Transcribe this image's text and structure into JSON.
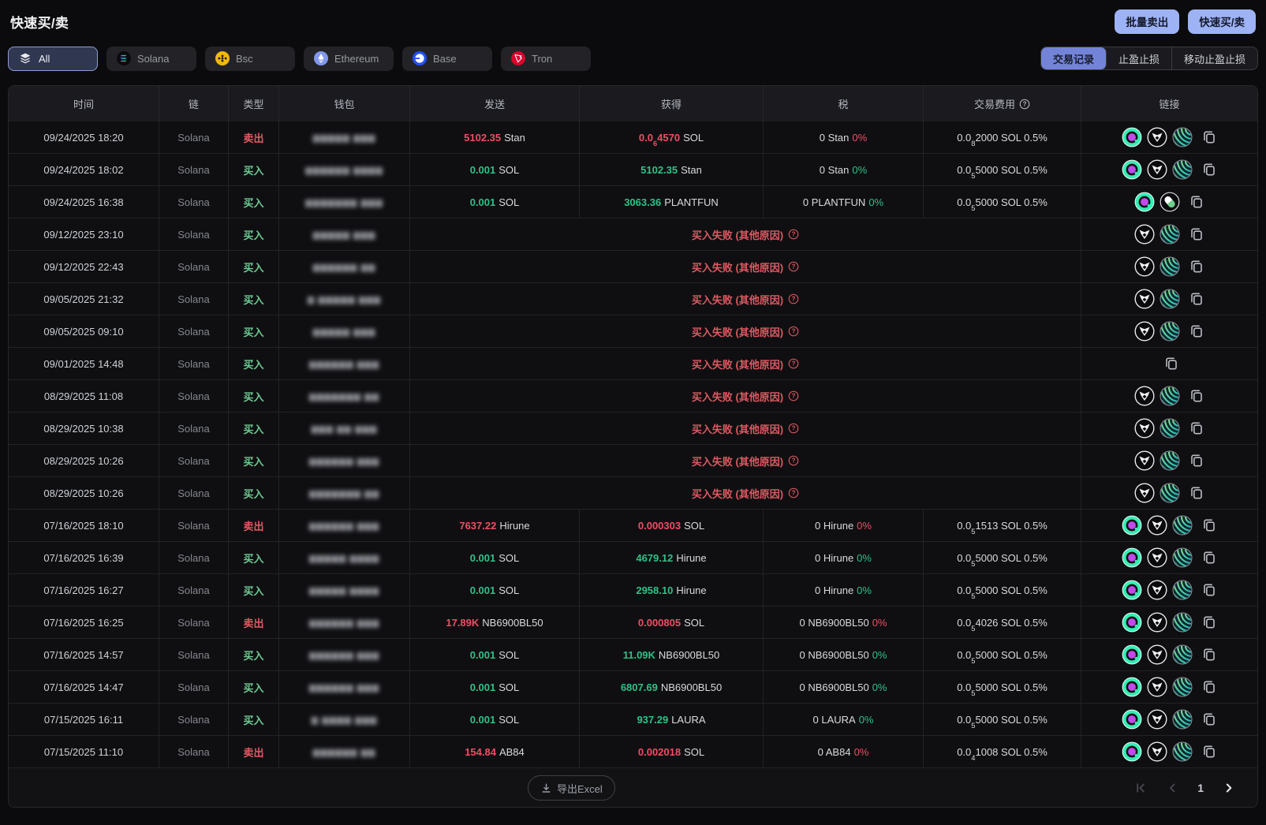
{
  "page": {
    "title": "快速买/卖",
    "actions": {
      "batch_sell": "批量卖出",
      "quick_trade": "快速买/卖"
    }
  },
  "chain_filters": [
    {
      "id": "all",
      "label": "All",
      "icon": "layers-icon",
      "active": true
    },
    {
      "id": "solana",
      "label": "Solana",
      "icon": "solana-icon",
      "active": false
    },
    {
      "id": "bsc",
      "label": "Bsc",
      "icon": "bsc-icon",
      "active": false
    },
    {
      "id": "ethereum",
      "label": "Ethereum",
      "icon": "ethereum-icon",
      "active": false
    },
    {
      "id": "base",
      "label": "Base",
      "icon": "base-icon",
      "active": false
    },
    {
      "id": "tron",
      "label": "Tron",
      "icon": "tron-icon",
      "active": false
    }
  ],
  "view_tabs": [
    {
      "label": "交易记录",
      "active": true
    },
    {
      "label": "止盈止损",
      "active": false
    },
    {
      "label": "移动止盈止损",
      "active": false
    }
  ],
  "table": {
    "headers": [
      "时间",
      "链",
      "类型",
      "钱包",
      "发送",
      "获得",
      "税",
      "交易费用",
      "链接"
    ],
    "type_labels": {
      "buy": "买入",
      "sell": "卖出"
    },
    "fail_text": "买入失败 (其他原因)",
    "rows": [
      {
        "time": "09/24/2025 18:20",
        "chain": "Solana",
        "type": "sell",
        "wallet_mask": "▆▆▆▆▆ ▆▆▆",
        "send": {
          "num": "5102.35",
          "token": "Stan"
        },
        "get": {
          "pre": "0.0",
          "sub": "6",
          "post": "4570",
          "token": "SOL"
        },
        "tax": {
          "amount": "0",
          "token": "Stan",
          "pct": "0%"
        },
        "fee": {
          "pre": "0.0",
          "sub": "8",
          "post": "2000",
          "token": "SOL",
          "pct": "0.5%"
        },
        "links": [
          "q",
          "bullx",
          "wave",
          "copy"
        ]
      },
      {
        "time": "09/24/2025 18:02",
        "chain": "Solana",
        "type": "buy",
        "wallet_mask": "▆▆▆▆▆▆ ▆▆▆▆",
        "send": {
          "num": "0.001",
          "token": "SOL"
        },
        "get": {
          "num": "5102.35",
          "token": "Stan"
        },
        "tax": {
          "amount": "0",
          "token": "Stan",
          "pct": "0%"
        },
        "fee": {
          "pre": "0.0",
          "sub": "5",
          "post": "5000",
          "token": "SOL",
          "pct": "0.5%"
        },
        "links": [
          "q",
          "bullx",
          "wave",
          "copy"
        ]
      },
      {
        "time": "09/24/2025 16:38",
        "chain": "Solana",
        "type": "buy",
        "wallet_mask": "▆▆▆▆▆▆▆ ▆▆▆",
        "send": {
          "num": "0.001",
          "token": "SOL"
        },
        "get": {
          "num": "3063.36",
          "token": "PLANTFUN"
        },
        "tax": {
          "amount": "0",
          "token": "PLANTFUN",
          "pct": "0%"
        },
        "fee": {
          "pre": "0.0",
          "sub": "5",
          "post": "5000",
          "token": "SOL",
          "pct": "0.5%"
        },
        "links": [
          "q",
          "pill",
          "copy"
        ]
      },
      {
        "time": "09/12/2025 23:10",
        "chain": "Solana",
        "type": "buy",
        "wallet_mask": "▆▆▆▆▆  ▆▆▆",
        "failed": true,
        "links": [
          "bullx",
          "wave",
          "copy"
        ]
      },
      {
        "time": "09/12/2025 22:43",
        "chain": "Solana",
        "type": "buy",
        "wallet_mask": "▆▆▆▆▆▆ ▆▆",
        "failed": true,
        "links": [
          "bullx",
          "wave",
          "copy"
        ]
      },
      {
        "time": "09/05/2025 21:32",
        "chain": "Solana",
        "type": "buy",
        "wallet_mask": "▆ ▆▆▆▆▆ ▆▆▆",
        "failed": true,
        "links": [
          "bullx",
          "wave",
          "copy"
        ]
      },
      {
        "time": "09/05/2025 09:10",
        "chain": "Solana",
        "type": "buy",
        "wallet_mask": "▆▆▆▆▆ ▆▆▆",
        "failed": true,
        "links": [
          "bullx",
          "wave",
          "copy"
        ]
      },
      {
        "time": "09/01/2025 14:48",
        "chain": "Solana",
        "type": "buy",
        "wallet_mask": "▆▆▆▆▆▆ ▆▆▆",
        "failed": true,
        "links": [
          "copy"
        ]
      },
      {
        "time": "08/29/2025 11:08",
        "chain": "Solana",
        "type": "buy",
        "wallet_mask": "▆▆▆▆▆▆▆ ▆▆",
        "failed": true,
        "links": [
          "bullx",
          "wave",
          "copy"
        ]
      },
      {
        "time": "08/29/2025 10:38",
        "chain": "Solana",
        "type": "buy",
        "wallet_mask": "▆▆▆ ▆▆ ▆▆▆",
        "failed": true,
        "links": [
          "bullx",
          "wave",
          "copy"
        ]
      },
      {
        "time": "08/29/2025 10:26",
        "chain": "Solana",
        "type": "buy",
        "wallet_mask": "▆▆▆▆▆▆ ▆▆▆",
        "failed": true,
        "links": [
          "bullx",
          "wave",
          "copy"
        ]
      },
      {
        "time": "08/29/2025 10:26",
        "chain": "Solana",
        "type": "buy",
        "wallet_mask": "▆▆▆▆▆▆▆ ▆▆",
        "failed": true,
        "links": [
          "bullx",
          "wave",
          "copy"
        ]
      },
      {
        "time": "07/16/2025 18:10",
        "chain": "Solana",
        "type": "sell",
        "wallet_mask": "▆▆▆▆▆▆ ▆▆▆",
        "send": {
          "num": "7637.22",
          "token": "Hirune"
        },
        "get": {
          "num": "0.000303",
          "token": "SOL"
        },
        "tax": {
          "amount": "0",
          "token": "Hirune",
          "pct": "0%"
        },
        "fee": {
          "pre": "0.0",
          "sub": "5",
          "post": "1513",
          "token": "SOL",
          "pct": "0.5%"
        },
        "links": [
          "q",
          "bullx",
          "wave",
          "copy"
        ]
      },
      {
        "time": "07/16/2025 16:39",
        "chain": "Solana",
        "type": "buy",
        "wallet_mask": "▆▆▆▆▆ ▆▆▆▆",
        "send": {
          "num": "0.001",
          "token": "SOL"
        },
        "get": {
          "num": "4679.12",
          "token": "Hirune"
        },
        "tax": {
          "amount": "0",
          "token": "Hirune",
          "pct": "0%"
        },
        "fee": {
          "pre": "0.0",
          "sub": "5",
          "post": "5000",
          "token": "SOL",
          "pct": "0.5%"
        },
        "links": [
          "q",
          "bullx",
          "wave",
          "copy"
        ]
      },
      {
        "time": "07/16/2025 16:27",
        "chain": "Solana",
        "type": "buy",
        "wallet_mask": "▆▆▆▆▆ ▆▆▆▆",
        "send": {
          "num": "0.001",
          "token": "SOL"
        },
        "get": {
          "num": "2958.10",
          "token": "Hirune"
        },
        "tax": {
          "amount": "0",
          "token": "Hirune",
          "pct": "0%"
        },
        "fee": {
          "pre": "0.0",
          "sub": "5",
          "post": "5000",
          "token": "SOL",
          "pct": "0.5%"
        },
        "links": [
          "q",
          "bullx",
          "wave",
          "copy"
        ]
      },
      {
        "time": "07/16/2025 16:25",
        "chain": "Solana",
        "type": "sell",
        "wallet_mask": "▆▆▆▆▆▆ ▆▆▆",
        "send": {
          "num": "17.89K",
          "token": "NB6900BL50"
        },
        "get": {
          "num": "0.000805",
          "token": "SOL"
        },
        "tax": {
          "amount": "0",
          "token": "NB6900BL50",
          "pct": "0%"
        },
        "fee": {
          "pre": "0.0",
          "sub": "5",
          "post": "4026",
          "token": "SOL",
          "pct": "0.5%"
        },
        "links": [
          "q",
          "bullx",
          "wave",
          "copy"
        ]
      },
      {
        "time": "07/16/2025 14:57",
        "chain": "Solana",
        "type": "buy",
        "wallet_mask": "▆▆▆▆▆▆ ▆▆▆",
        "send": {
          "num": "0.001",
          "token": "SOL"
        },
        "get": {
          "num": "11.09K",
          "token": "NB6900BL50"
        },
        "tax": {
          "amount": "0",
          "token": "NB6900BL50",
          "pct": "0%"
        },
        "fee": {
          "pre": "0.0",
          "sub": "5",
          "post": "5000",
          "token": "SOL",
          "pct": "0.5%"
        },
        "links": [
          "q",
          "bullx",
          "wave",
          "copy"
        ]
      },
      {
        "time": "07/16/2025 14:47",
        "chain": "Solana",
        "type": "buy",
        "wallet_mask": "▆▆▆▆▆▆ ▆▆▆",
        "send": {
          "num": "0.001",
          "token": "SOL"
        },
        "get": {
          "num": "6807.69",
          "token": "NB6900BL50"
        },
        "tax": {
          "amount": "0",
          "token": "NB6900BL50",
          "pct": "0%"
        },
        "fee": {
          "pre": "0.0",
          "sub": "5",
          "post": "5000",
          "token": "SOL",
          "pct": "0.5%"
        },
        "links": [
          "q",
          "bullx",
          "wave",
          "copy"
        ]
      },
      {
        "time": "07/15/2025 16:11",
        "chain": "Solana",
        "type": "buy",
        "wallet_mask": "▆ ▆▆▆▆ ▆▆▆",
        "send": {
          "num": "0.001",
          "token": "SOL"
        },
        "get": {
          "num": "937.29",
          "token": "LAURA"
        },
        "tax": {
          "amount": "0",
          "token": "LAURA",
          "pct": "0%"
        },
        "fee": {
          "pre": "0.0",
          "sub": "5",
          "post": "5000",
          "token": "SOL",
          "pct": "0.5%"
        },
        "links": [
          "q",
          "bullx",
          "wave",
          "copy"
        ]
      },
      {
        "time": "07/15/2025 11:10",
        "chain": "Solana",
        "type": "sell",
        "wallet_mask": "▆▆▆▆▆▆ ▆▆",
        "send": {
          "num": "154.84",
          "token": "AB84"
        },
        "get": {
          "num": "0.002018",
          "token": "SOL"
        },
        "tax": {
          "amount": "0",
          "token": "AB84",
          "pct": "0%"
        },
        "fee": {
          "pre": "0.0",
          "sub": "4",
          "post": "1008",
          "token": "SOL",
          "pct": "0.5%"
        },
        "links": [
          "q",
          "bullx",
          "wave",
          "copy"
        ]
      }
    ]
  },
  "footer": {
    "export_label": "导出Excel",
    "page": "1"
  },
  "colors": {
    "accent_button": "#9db3f5",
    "active_tab": "#7384d8",
    "buy_green_label": "#6fca93",
    "buy_green_num": "#2fc287",
    "sell_red_label": "#e25a62",
    "sell_red_num": "#ed4f63",
    "fail_red": "#de5a62"
  }
}
